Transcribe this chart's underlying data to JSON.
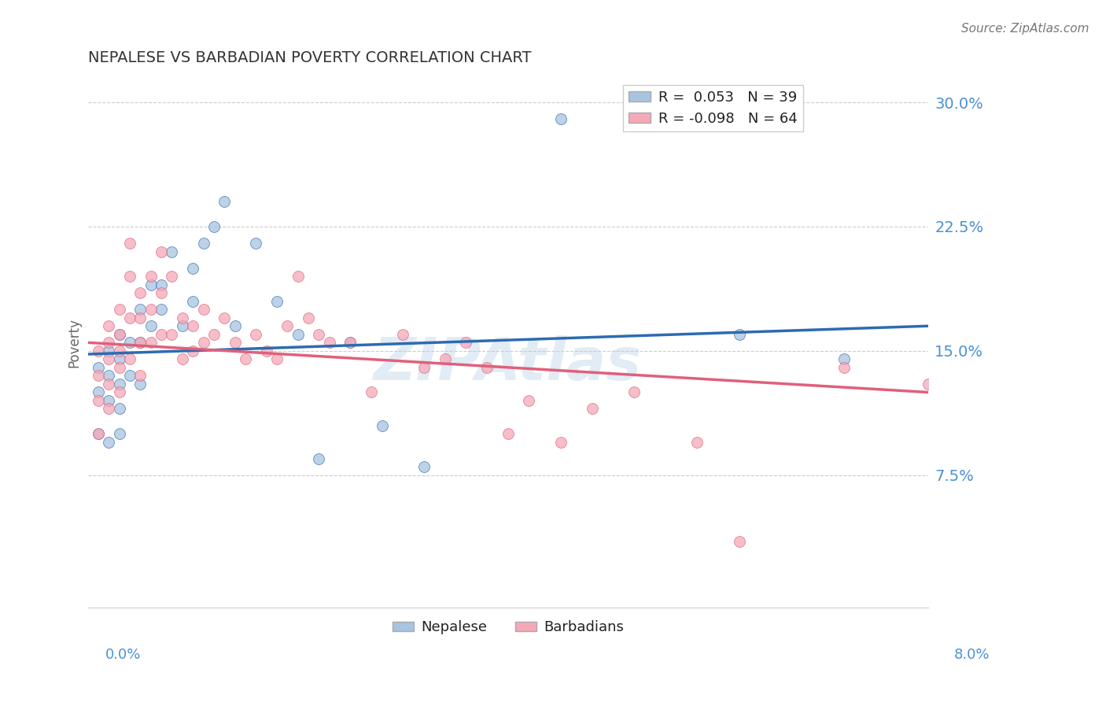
{
  "title": "NEPALESE VS BARBADIAN POVERTY CORRELATION CHART",
  "source": "Source: ZipAtlas.com",
  "ylabel": "Poverty",
  "xlim": [
    0.0,
    0.08
  ],
  "ylim": [
    -0.005,
    0.315
  ],
  "yticks": [
    0.0,
    0.075,
    0.15,
    0.225,
    0.3
  ],
  "ytick_labels": [
    "",
    "7.5%",
    "15.0%",
    "22.5%",
    "30.0%"
  ],
  "nepalese_color": "#a8c4e0",
  "barbadian_color": "#f4a8b8",
  "nepalese_line_color": "#2d6bb0",
  "barbadian_line_color": "#e0607a",
  "watermark": "ZIPAtlas",
  "background_color": "#ffffff",
  "grid_color": "#cccccc",
  "title_color": "#333333",
  "axis_label_color": "#4a90d9",
  "marker_size": 100,
  "marker_alpha": 0.75,
  "line_width": 2.5,
  "nepalese_x": [
    0.001,
    0.001,
    0.001,
    0.002,
    0.002,
    0.002,
    0.002,
    0.003,
    0.003,
    0.003,
    0.003,
    0.003,
    0.004,
    0.004,
    0.005,
    0.005,
    0.005,
    0.006,
    0.006,
    0.007,
    0.007,
    0.008,
    0.009,
    0.01,
    0.01,
    0.011,
    0.012,
    0.013,
    0.014,
    0.016,
    0.018,
    0.02,
    0.022,
    0.025,
    0.028,
    0.032,
    0.045,
    0.062,
    0.072
  ],
  "nepalese_y": [
    0.14,
    0.125,
    0.1,
    0.135,
    0.15,
    0.12,
    0.095,
    0.16,
    0.145,
    0.13,
    0.115,
    0.1,
    0.155,
    0.135,
    0.175,
    0.155,
    0.13,
    0.19,
    0.165,
    0.19,
    0.175,
    0.21,
    0.165,
    0.2,
    0.18,
    0.215,
    0.225,
    0.24,
    0.165,
    0.215,
    0.18,
    0.16,
    0.085,
    0.155,
    0.105,
    0.08,
    0.29,
    0.16,
    0.145
  ],
  "barbadian_x": [
    0.001,
    0.001,
    0.001,
    0.001,
    0.002,
    0.002,
    0.002,
    0.002,
    0.002,
    0.003,
    0.003,
    0.003,
    0.003,
    0.003,
    0.004,
    0.004,
    0.004,
    0.004,
    0.005,
    0.005,
    0.005,
    0.005,
    0.006,
    0.006,
    0.006,
    0.007,
    0.007,
    0.007,
    0.008,
    0.008,
    0.009,
    0.009,
    0.01,
    0.01,
    0.011,
    0.011,
    0.012,
    0.013,
    0.014,
    0.015,
    0.016,
    0.017,
    0.018,
    0.019,
    0.02,
    0.021,
    0.022,
    0.023,
    0.025,
    0.027,
    0.03,
    0.032,
    0.034,
    0.036,
    0.038,
    0.04,
    0.042,
    0.045,
    0.048,
    0.052,
    0.058,
    0.062,
    0.072,
    0.08
  ],
  "barbadian_y": [
    0.15,
    0.135,
    0.12,
    0.1,
    0.165,
    0.155,
    0.145,
    0.13,
    0.115,
    0.175,
    0.16,
    0.15,
    0.14,
    0.125,
    0.215,
    0.195,
    0.17,
    0.145,
    0.185,
    0.17,
    0.155,
    0.135,
    0.195,
    0.175,
    0.155,
    0.21,
    0.185,
    0.16,
    0.195,
    0.16,
    0.17,
    0.145,
    0.165,
    0.15,
    0.175,
    0.155,
    0.16,
    0.17,
    0.155,
    0.145,
    0.16,
    0.15,
    0.145,
    0.165,
    0.195,
    0.17,
    0.16,
    0.155,
    0.155,
    0.125,
    0.16,
    0.14,
    0.145,
    0.155,
    0.14,
    0.1,
    0.12,
    0.095,
    0.115,
    0.125,
    0.095,
    0.035,
    0.14,
    0.13
  ],
  "nep_line_x0": 0.0,
  "nep_line_x1": 0.08,
  "nep_line_y0": 0.148,
  "nep_line_y1": 0.165,
  "bar_line_x0": 0.0,
  "bar_line_x1": 0.08,
  "bar_line_y0": 0.155,
  "bar_line_y1": 0.125
}
